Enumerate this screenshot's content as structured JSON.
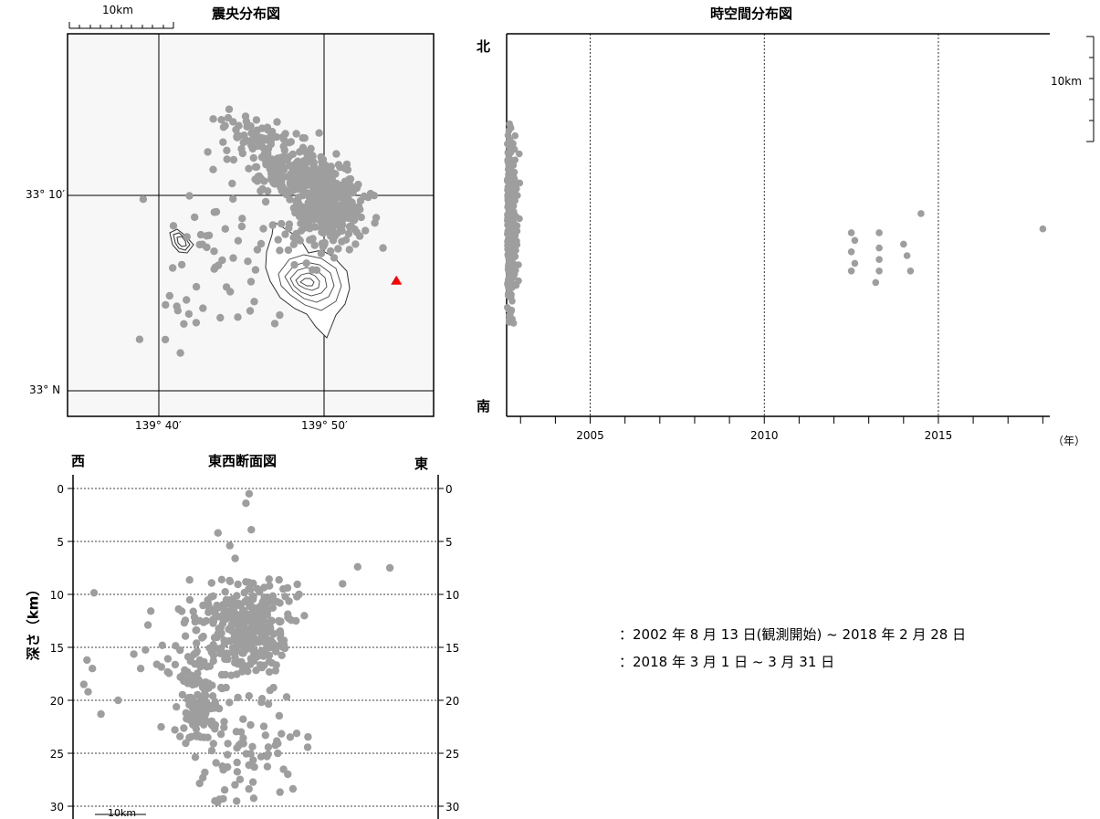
{
  "map": {
    "title": "震央分布図",
    "scale_label": "10km",
    "lat_labels": [
      "33° 10′",
      "33° N"
    ],
    "lon_labels": [
      "139° 40′",
      "139° 50′"
    ]
  },
  "timeplot": {
    "title": "時空間分布図",
    "north_label": "北",
    "south_label": "南",
    "year_unit": "（年）",
    "scale_label": "10km"
  },
  "section": {
    "title": "東西断面図",
    "west_label": "西",
    "east_label": "東",
    "ylabel": "深さ（km）",
    "scale_label": "10km"
  },
  "legend": {
    "line1": "：2002 年 8 月 13 日(観測開始) ~ 2018 年 2 月 28 日",
    "line2": "：2018 年 3 月 1 日 ~ 3 月 31 日"
  },
  "colors": {
    "past_events": "#9e9e9e",
    "volcano_marker": "#ff0000",
    "map_background": "#f7f7f7"
  },
  "chart_data": [
    {
      "type": "scatter",
      "name": "epicenter-map",
      "title": "震央分布図",
      "x_ticks": [
        {
          "value": 139.6667,
          "label": "139° 40′"
        },
        {
          "value": 139.8333,
          "label": "139° 50′"
        }
      ],
      "y_ticks": [
        {
          "value": 33.1667,
          "label": "33° 10′"
        },
        {
          "value": 33.0,
          "label": "33° N"
        }
      ],
      "xlim": [
        139.575,
        139.85
      ],
      "ylim": [
        32.975,
        33.3
      ],
      "clusters": [
        {
          "lon": 139.77,
          "lat": 33.155,
          "slon": 0.013,
          "slat": 0.018,
          "n": 360
        },
        {
          "lon": 139.74,
          "lat": 33.185,
          "slon": 0.013,
          "slat": 0.012,
          "n": 160
        },
        {
          "lon": 139.71,
          "lat": 33.215,
          "slon": 0.012,
          "slat": 0.01,
          "n": 60
        },
        {
          "lon": 139.7,
          "lat": 33.12,
          "slon": 0.035,
          "slat": 0.04,
          "n": 70
        }
      ],
      "volcano": {
        "lon": 139.822,
        "lat": 33.09
      }
    },
    {
      "type": "scatter",
      "name": "space-time-plot",
      "title": "時空間分布図",
      "x_ticks": [
        2005,
        2010,
        2015
      ],
      "xlim": [
        2002.6,
        2018.2
      ],
      "ylim": [
        0,
        100
      ],
      "events_early": {
        "year_start": 2002.62,
        "year_end": 2004.6,
        "n": 320
      },
      "events_late": [
        [
          2012.5,
          48
        ],
        [
          2012.6,
          46
        ],
        [
          2012.5,
          43
        ],
        [
          2012.6,
          40
        ],
        [
          2012.5,
          38
        ],
        [
          2013.3,
          48
        ],
        [
          2013.3,
          44
        ],
        [
          2013.3,
          41
        ],
        [
          2013.3,
          38
        ],
        [
          2013.2,
          35
        ],
        [
          2014.0,
          45
        ],
        [
          2014.1,
          42
        ],
        [
          2014.2,
          38
        ],
        [
          2014.5,
          53
        ],
        [
          2018.0,
          49
        ]
      ]
    },
    {
      "type": "scatter",
      "name": "depth-section",
      "title": "東西断面図",
      "ylabel": "深さ（km）",
      "y_ticks": [
        0,
        5,
        10,
        15,
        20,
        25,
        30
      ],
      "ylim": [
        0,
        30
      ],
      "x_range_km": [
        0,
        34
      ],
      "clusters": [
        {
          "x": 16.3,
          "d": 12.8,
          "sx": 2.2,
          "sd": 2.0,
          "n": 300
        },
        {
          "x": 12.0,
          "d": 20.5,
          "sx": 1.2,
          "sd": 2.2,
          "n": 120
        },
        {
          "x": 13.0,
          "d": 16.0,
          "sx": 4.0,
          "sd": 4.5,
          "n": 80
        },
        {
          "x": 16.0,
          "d": 25.5,
          "sx": 2.2,
          "sd": 2.8,
          "n": 60
        }
      ],
      "outliers": [
        [
          16.4,
          0.5
        ],
        [
          16.1,
          1.4
        ],
        [
          13.5,
          4.2
        ],
        [
          16.6,
          3.9
        ],
        [
          14.6,
          5.4
        ],
        [
          15.1,
          6.6
        ],
        [
          1.3,
          16.2
        ],
        [
          1.8,
          17.0
        ],
        [
          1.0,
          18.5
        ],
        [
          1.4,
          19.2
        ],
        [
          2.6,
          21.3
        ],
        [
          4.2,
          20.0
        ],
        [
          26.5,
          7.4
        ],
        [
          25.1,
          9.0
        ],
        [
          6.3,
          17.0
        ],
        [
          7.8,
          16.6
        ],
        [
          29.5,
          7.5
        ]
      ]
    }
  ]
}
